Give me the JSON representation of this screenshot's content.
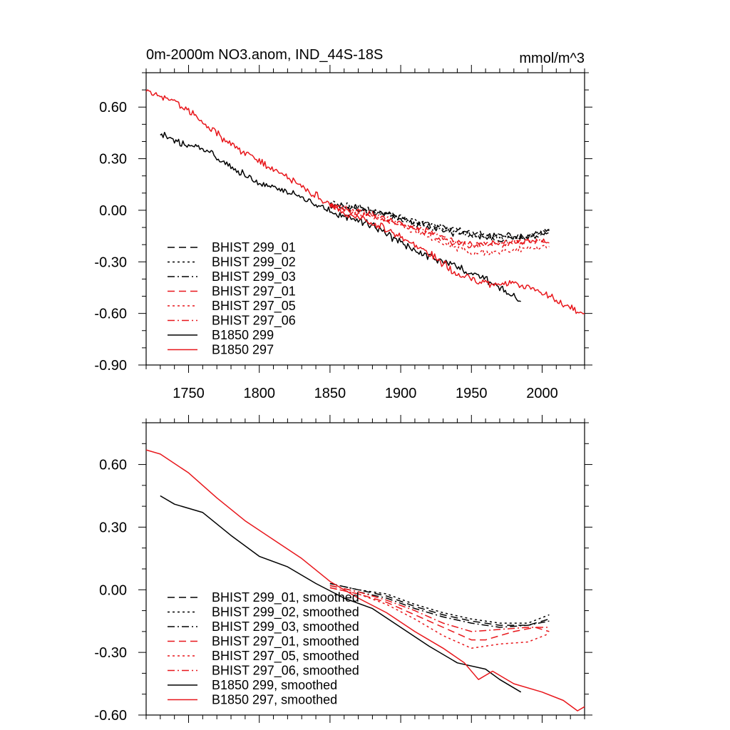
{
  "colors": {
    "black": "#000000",
    "red": "#e8161b"
  },
  "chart_data": [
    {
      "type": "line",
      "title": "0m-2000m NO3.anom, IND_44S-18S",
      "units": "mmol/m^3",
      "xlim": [
        1720,
        2030
      ],
      "ylim": [
        -0.9,
        0.8
      ],
      "xticks": [
        1750,
        1800,
        1850,
        1900,
        1950,
        2000
      ],
      "xtick_labels": [
        "1750",
        "1800",
        "1850",
        "1900",
        "1950",
        "2000"
      ],
      "yticks": [
        0.6,
        0.3,
        0.0,
        -0.3,
        -0.6,
        -0.9
      ],
      "ytick_labels": [
        "0.60",
        "0.30",
        "0.00",
        "-0.30",
        "-0.60",
        "-0.90"
      ],
      "series": [
        {
          "name": "BHIST 299_01",
          "color": "#000000",
          "dash": "dashed",
          "noise": 0.028,
          "points": [
            [
              1850,
              0.04
            ],
            [
              1870,
              0.02
            ],
            [
              1890,
              -0.02
            ],
            [
              1910,
              -0.07
            ],
            [
              1930,
              -0.1
            ],
            [
              1950,
              -0.13
            ],
            [
              1970,
              -0.15
            ],
            [
              1990,
              -0.15
            ],
            [
              2005,
              -0.12
            ]
          ]
        },
        {
          "name": "BHIST 299_02",
          "color": "#000000",
          "dash": "dotted",
          "noise": 0.028,
          "points": [
            [
              1850,
              0.05
            ],
            [
              1870,
              0.01
            ],
            [
              1890,
              -0.02
            ],
            [
              1910,
              -0.06
            ],
            [
              1930,
              -0.1
            ],
            [
              1950,
              -0.14
            ],
            [
              1970,
              -0.16
            ],
            [
              1990,
              -0.16
            ],
            [
              2005,
              -0.11
            ]
          ]
        },
        {
          "name": "BHIST 299_03",
          "color": "#000000",
          "dash": "dashdot",
          "noise": 0.028,
          "points": [
            [
              1850,
              0.03
            ],
            [
              1870,
              0.0
            ],
            [
              1890,
              -0.03
            ],
            [
              1910,
              -0.08
            ],
            [
              1930,
              -0.12
            ],
            [
              1950,
              -0.15
            ],
            [
              1970,
              -0.17
            ],
            [
              1990,
              -0.16
            ],
            [
              2005,
              -0.13
            ]
          ]
        },
        {
          "name": "BHIST 297_01",
          "color": "#e8161b",
          "dash": "dashed",
          "noise": 0.028,
          "points": [
            [
              1850,
              0.02
            ],
            [
              1870,
              -0.02
            ],
            [
              1890,
              -0.06
            ],
            [
              1910,
              -0.11
            ],
            [
              1930,
              -0.17
            ],
            [
              1950,
              -0.21
            ],
            [
              1970,
              -0.2
            ],
            [
              1990,
              -0.18
            ],
            [
              2005,
              -0.19
            ]
          ]
        },
        {
          "name": "BHIST 297_05",
          "color": "#e8161b",
          "dash": "dotted",
          "noise": 0.028,
          "points": [
            [
              1850,
              0.02
            ],
            [
              1870,
              -0.01
            ],
            [
              1890,
              -0.05
            ],
            [
              1910,
              -0.12
            ],
            [
              1930,
              -0.19
            ],
            [
              1950,
              -0.25
            ],
            [
              1970,
              -0.24
            ],
            [
              1990,
              -0.22
            ],
            [
              2005,
              -0.21
            ]
          ]
        },
        {
          "name": "BHIST 297_06",
          "color": "#e8161b",
          "dash": "dashdot",
          "noise": 0.028,
          "points": [
            [
              1850,
              0.03
            ],
            [
              1870,
              0.0
            ],
            [
              1890,
              -0.04
            ],
            [
              1910,
              -0.1
            ],
            [
              1930,
              -0.15
            ],
            [
              1950,
              -0.2
            ],
            [
              1970,
              -0.19
            ],
            [
              1990,
              -0.18
            ],
            [
              2005,
              -0.18
            ]
          ]
        },
        {
          "name": "B1850 299",
          "color": "#000000",
          "dash": "solid",
          "noise": 0.035,
          "points": [
            [
              1730,
              0.45
            ],
            [
              1740,
              0.4
            ],
            [
              1760,
              0.36
            ],
            [
              1780,
              0.25
            ],
            [
              1800,
              0.16
            ],
            [
              1820,
              0.11
            ],
            [
              1840,
              0.03
            ],
            [
              1860,
              -0.04
            ],
            [
              1880,
              -0.08
            ],
            [
              1900,
              -0.19
            ],
            [
              1920,
              -0.27
            ],
            [
              1940,
              -0.33
            ],
            [
              1960,
              -0.4
            ],
            [
              1985,
              -0.53
            ]
          ]
        },
        {
          "name": "B1850 297",
          "color": "#e8161b",
          "dash": "solid",
          "noise": 0.035,
          "points": [
            [
              1720,
              0.7
            ],
            [
              1740,
              0.63
            ],
            [
              1760,
              0.52
            ],
            [
              1780,
              0.38
            ],
            [
              1800,
              0.29
            ],
            [
              1820,
              0.19
            ],
            [
              1840,
              0.09
            ],
            [
              1860,
              -0.02
            ],
            [
              1880,
              -0.07
            ],
            [
              1900,
              -0.15
            ],
            [
              1920,
              -0.25
            ],
            [
              1940,
              -0.37
            ],
            [
              1960,
              -0.43
            ],
            [
              1980,
              -0.42
            ],
            [
              2000,
              -0.47
            ],
            [
              2015,
              -0.55
            ],
            [
              2030,
              -0.6
            ]
          ]
        }
      ]
    },
    {
      "type": "line",
      "xlim": [
        1720,
        2030
      ],
      "ylim": [
        -0.6,
        0.8
      ],
      "xticks": [
        1750,
        1800,
        1850,
        1900,
        1950,
        2000
      ],
      "yticks": [
        0.6,
        0.3,
        0.0,
        -0.3,
        -0.6
      ],
      "ytick_labels": [
        "0.60",
        "0.30",
        "0.00",
        "-0.30",
        "-0.60"
      ],
      "series": [
        {
          "name": "BHIST 299_01, smoothed",
          "color": "#000000",
          "dash": "dashed",
          "noise": 0,
          "points": [
            [
              1850,
              0.03
            ],
            [
              1870,
              0.0
            ],
            [
              1890,
              -0.03
            ],
            [
              1910,
              -0.08
            ],
            [
              1930,
              -0.12
            ],
            [
              1950,
              -0.15
            ],
            [
              1970,
              -0.17
            ],
            [
              1990,
              -0.17
            ],
            [
              2005,
              -0.14
            ]
          ]
        },
        {
          "name": "BHIST 299_02, smoothed",
          "color": "#000000",
          "dash": "dotted",
          "noise": 0,
          "points": [
            [
              1850,
              0.03
            ],
            [
              1870,
              0.0
            ],
            [
              1890,
              -0.02
            ],
            [
              1910,
              -0.07
            ],
            [
              1930,
              -0.11
            ],
            [
              1950,
              -0.14
            ],
            [
              1970,
              -0.16
            ],
            [
              1990,
              -0.16
            ],
            [
              2005,
              -0.12
            ]
          ]
        },
        {
          "name": "BHIST 299_03, smoothed",
          "color": "#000000",
          "dash": "dashdot",
          "noise": 0,
          "points": [
            [
              1850,
              0.02
            ],
            [
              1870,
              -0.01
            ],
            [
              1890,
              -0.04
            ],
            [
              1910,
              -0.09
            ],
            [
              1930,
              -0.13
            ],
            [
              1950,
              -0.16
            ],
            [
              1970,
              -0.18
            ],
            [
              1990,
              -0.17
            ],
            [
              2005,
              -0.15
            ]
          ]
        },
        {
          "name": "BHIST 297_01, smoothed",
          "color": "#e8161b",
          "dash": "dashed",
          "noise": 0,
          "points": [
            [
              1850,
              0.01
            ],
            [
              1870,
              -0.02
            ],
            [
              1890,
              -0.06
            ],
            [
              1910,
              -0.12
            ],
            [
              1930,
              -0.18
            ],
            [
              1950,
              -0.24
            ],
            [
              1960,
              -0.24
            ],
            [
              1980,
              -0.2
            ],
            [
              1995,
              -0.18
            ],
            [
              2005,
              -0.2
            ]
          ]
        },
        {
          "name": "BHIST 297_05, smoothed",
          "color": "#e8161b",
          "dash": "dotted",
          "noise": 0,
          "points": [
            [
              1850,
              0.01
            ],
            [
              1870,
              -0.02
            ],
            [
              1890,
              -0.07
            ],
            [
              1910,
              -0.14
            ],
            [
              1930,
              -0.22
            ],
            [
              1950,
              -0.28
            ],
            [
              1970,
              -0.26
            ],
            [
              1990,
              -0.25
            ],
            [
              2005,
              -0.21
            ]
          ]
        },
        {
          "name": "BHIST 297_06, smoothed",
          "color": "#e8161b",
          "dash": "dashdot",
          "noise": 0,
          "points": [
            [
              1850,
              0.02
            ],
            [
              1870,
              -0.01
            ],
            [
              1890,
              -0.05
            ],
            [
              1910,
              -0.1
            ],
            [
              1930,
              -0.16
            ],
            [
              1950,
              -0.2
            ],
            [
              1970,
              -0.19
            ],
            [
              1990,
              -0.18
            ],
            [
              2005,
              -0.18
            ]
          ]
        },
        {
          "name": "B1850 299, smoothed",
          "color": "#000000",
          "dash": "solid",
          "noise": 0,
          "points": [
            [
              1730,
              0.45
            ],
            [
              1740,
              0.41
            ],
            [
              1760,
              0.37
            ],
            [
              1780,
              0.26
            ],
            [
              1800,
              0.16
            ],
            [
              1820,
              0.11
            ],
            [
              1840,
              0.03
            ],
            [
              1860,
              -0.04
            ],
            [
              1880,
              -0.09
            ],
            [
              1900,
              -0.18
            ],
            [
              1920,
              -0.27
            ],
            [
              1940,
              -0.35
            ],
            [
              1960,
              -0.38
            ],
            [
              1970,
              -0.43
            ],
            [
              1985,
              -0.49
            ]
          ]
        },
        {
          "name": "B1850 297, smoothed",
          "color": "#e8161b",
          "dash": "solid",
          "noise": 0,
          "points": [
            [
              1720,
              0.67
            ],
            [
              1730,
              0.65
            ],
            [
              1750,
              0.56
            ],
            [
              1770,
              0.44
            ],
            [
              1790,
              0.33
            ],
            [
              1810,
              0.24
            ],
            [
              1830,
              0.15
            ],
            [
              1850,
              0.04
            ],
            [
              1870,
              -0.04
            ],
            [
              1890,
              -0.11
            ],
            [
              1910,
              -0.2
            ],
            [
              1930,
              -0.28
            ],
            [
              1945,
              -0.35
            ],
            [
              1955,
              -0.43
            ],
            [
              1965,
              -0.39
            ],
            [
              1980,
              -0.45
            ],
            [
              2000,
              -0.49
            ],
            [
              2015,
              -0.53
            ],
            [
              2025,
              -0.58
            ],
            [
              2030,
              -0.56
            ]
          ]
        }
      ]
    }
  ]
}
